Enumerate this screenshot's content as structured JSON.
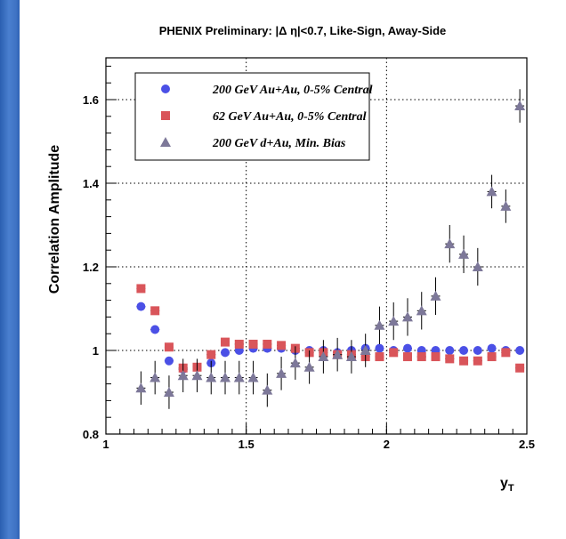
{
  "chart_data": {
    "type": "scatter",
    "title": "PHENIX Preliminary: |Δ η|<0.7, Like-Sign, Away-Side",
    "xlabel": "y",
    "xlabel_sub": "T",
    "ylabel": "Correlation Amplitude",
    "xlim": [
      1,
      2.5
    ],
    "ylim": [
      0.8,
      1.7
    ],
    "x_ticks": [
      "1",
      "1.5",
      "2",
      "2.5"
    ],
    "y_ticks": [
      "0.8",
      "1",
      "1.2",
      "1.4",
      "1.6"
    ],
    "grid": "dotted at major ticks",
    "legend_position": "top-left",
    "series": [
      {
        "name": "200 GeV Au+Au, 0-5% Central",
        "marker": "circle",
        "color": "#4b50e6",
        "x": [
          1.125,
          1.175,
          1.225,
          1.275,
          1.325,
          1.375,
          1.425,
          1.475,
          1.525,
          1.575,
          1.625,
          1.675,
          1.725,
          1.775,
          1.825,
          1.875,
          1.925,
          1.975,
          2.025,
          2.075,
          2.125,
          2.175,
          2.225,
          2.275,
          2.325,
          2.375,
          2.425,
          2.475
        ],
        "y": [
          1.105,
          1.05,
          0.975,
          0.955,
          0.96,
          0.97,
          0.995,
          1.0,
          1.005,
          1.005,
          1.005,
          1.0,
          1.0,
          1.0,
          0.995,
          1.0,
          1.005,
          1.005,
          1.0,
          1.005,
          1.0,
          1.0,
          1.0,
          1.0,
          1.0,
          1.005,
          1.0,
          1.0
        ],
        "err": [
          0.004,
          0.004,
          0.004,
          0.004,
          0.004,
          0.004,
          0.004,
          0.004,
          0.004,
          0.004,
          0.004,
          0.004,
          0.004,
          0.004,
          0.004,
          0.004,
          0.004,
          0.004,
          0.004,
          0.004,
          0.004,
          0.004,
          0.004,
          0.004,
          0.004,
          0.004,
          0.004,
          0.004
        ]
      },
      {
        "name": "62 GeV Au+Au, 0-5% Central",
        "marker": "square",
        "color": "#d9555a",
        "x": [
          1.125,
          1.175,
          1.225,
          1.275,
          1.325,
          1.375,
          1.425,
          1.475,
          1.525,
          1.575,
          1.625,
          1.675,
          1.725,
          1.775,
          1.825,
          1.875,
          1.925,
          1.975,
          2.025,
          2.075,
          2.125,
          2.175,
          2.225,
          2.275,
          2.325,
          2.375,
          2.425,
          2.475
        ],
        "y": [
          1.148,
          1.095,
          1.008,
          0.958,
          0.96,
          0.99,
          1.02,
          1.015,
          1.015,
          1.015,
          1.012,
          1.005,
          0.995,
          0.995,
          0.99,
          0.99,
          0.985,
          0.985,
          0.995,
          0.985,
          0.985,
          0.985,
          0.98,
          0.975,
          0.975,
          0.985,
          0.995,
          0.958
        ],
        "err": [
          0.005,
          0.005,
          0.005,
          0.005,
          0.005,
          0.005,
          0.005,
          0.005,
          0.005,
          0.005,
          0.005,
          0.005,
          0.005,
          0.005,
          0.005,
          0.005,
          0.005,
          0.005,
          0.005,
          0.005,
          0.005,
          0.005,
          0.005,
          0.005,
          0.005,
          0.005,
          0.005,
          0.005
        ]
      },
      {
        "name": "200 GeV d+Au, Min. Bias",
        "marker": "triangle",
        "color": "#7d7899",
        "x": [
          1.125,
          1.175,
          1.225,
          1.275,
          1.325,
          1.375,
          1.425,
          1.475,
          1.525,
          1.575,
          1.625,
          1.675,
          1.725,
          1.775,
          1.825,
          1.875,
          1.925,
          1.975,
          2.025,
          2.075,
          2.125,
          2.175,
          2.225,
          2.275,
          2.325,
          2.375,
          2.425,
          2.475
        ],
        "y": [
          0.91,
          0.935,
          0.9,
          0.94,
          0.94,
          0.935,
          0.935,
          0.935,
          0.935,
          0.905,
          0.945,
          0.97,
          0.96,
          0.985,
          0.99,
          0.985,
          1.0,
          1.06,
          1.07,
          1.08,
          1.095,
          1.13,
          1.255,
          1.23,
          1.2,
          1.38,
          1.345,
          1.585
        ],
        "err": [
          0.04,
          0.04,
          0.04,
          0.04,
          0.04,
          0.04,
          0.04,
          0.04,
          0.04,
          0.04,
          0.04,
          0.04,
          0.04,
          0.04,
          0.04,
          0.04,
          0.04,
          0.045,
          0.045,
          0.045,
          0.045,
          0.045,
          0.045,
          0.045,
          0.045,
          0.04,
          0.04,
          0.04
        ]
      }
    ]
  }
}
